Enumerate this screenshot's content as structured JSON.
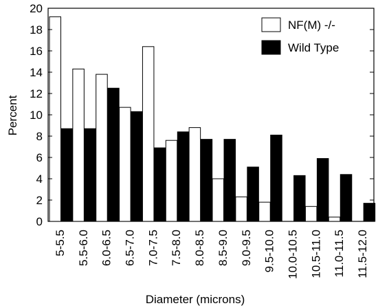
{
  "chart_data": {
    "type": "bar",
    "categories": [
      "5-5.5",
      "5.5-6.0",
      "6.0-6.5",
      "6.5-7.0",
      "7.0-7.5",
      "7.5-8.0",
      "8.0-8.5",
      "8.5-9.0",
      "9.0-9.5",
      "9.5-10.0",
      "10.0-10.5",
      "10.5-11.0",
      "11.0-11.5",
      "11.5-12.0"
    ],
    "series": [
      {
        "name": "NF(M) -/-",
        "color": "#ffffff",
        "values": [
          19.2,
          14.3,
          13.8,
          10.7,
          16.4,
          7.6,
          8.8,
          4.0,
          2.3,
          1.8,
          0,
          1.4,
          0.4,
          0
        ]
      },
      {
        "name": "Wild Type",
        "color": "#000000",
        "values": [
          8.7,
          8.7,
          12.5,
          10.3,
          6.9,
          8.4,
          7.7,
          7.7,
          5.1,
          8.1,
          4.3,
          5.9,
          4.4,
          1.7
        ]
      }
    ],
    "xlabel": "Diameter (microns)",
    "ylabel": "Percent",
    "ylim": [
      0,
      20
    ],
    "yticks": [
      0,
      2,
      4,
      6,
      8,
      10,
      12,
      14,
      16,
      18,
      20
    ],
    "legend_position": "top-right"
  }
}
